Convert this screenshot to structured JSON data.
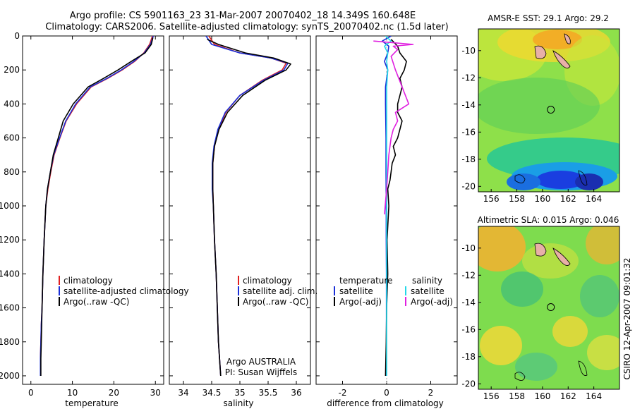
{
  "header": {
    "line1": "Argo profile: CS 5901163_23 31-Mar-2007 20070402_18 14.349S 160.648E",
    "line2": "Climatology: CARS2006. Satellite-adjusted climatology: synTS_20070402.nc (1.5d later)"
  },
  "side_label": "CSIRO 12-Apr-2007 09:01:32",
  "colors": {
    "climatology": "#e02020",
    "satellite": "#1a2fd8",
    "argo": "#000000",
    "salinity_satellite": "#22d8e8",
    "salinity_argo": "#e020e0"
  },
  "chart_data": [
    {
      "id": "temperature",
      "type": "line",
      "xlabel": "temperature",
      "xlim": [
        -2,
        32
      ],
      "ylim": [
        2050,
        0
      ],
      "xticks": [
        0,
        10,
        20,
        30
      ],
      "xtick_labels": [
        "0",
        "10",
        "20",
        "30"
      ],
      "yticks": [
        0,
        200,
        400,
        600,
        800,
        1000,
        1200,
        1400,
        1600,
        1800,
        2000
      ],
      "ytick_labels": [
        "0",
        "200",
        "400",
        "600",
        "800",
        "1000",
        "1200",
        "1400",
        "1600",
        "1800",
        "2000"
      ],
      "legend": [
        {
          "key": "clim",
          "label": "climatology"
        },
        {
          "key": "sat",
          "label": "satellite-adjusted climatology"
        },
        {
          "key": "argo",
          "label": "Argo(..raw -QC)"
        }
      ],
      "series": [
        {
          "name": "climatology",
          "color_key": "climatology",
          "x": [
            29.3,
            28.6,
            27.2,
            25.0,
            22.0,
            18.5,
            14.5,
            11.0,
            8.5,
            7.0,
            5.6,
            4.8,
            4.1,
            3.6,
            3.2,
            2.9,
            2.7,
            2.5,
            2.4,
            2.3,
            2.3
          ],
          "y": [
            0,
            50,
            100,
            150,
            200,
            250,
            300,
            400,
            500,
            600,
            700,
            800,
            900,
            1000,
            1200,
            1400,
            1600,
            1700,
            1800,
            1900,
            2000
          ]
        },
        {
          "name": "satellite-adjusted climatology",
          "color_key": "satellite",
          "x": [
            29.5,
            28.8,
            27.3,
            24.8,
            21.8,
            18.3,
            14.3,
            10.8,
            8.4,
            6.9,
            5.5,
            4.7,
            4.0,
            3.6,
            3.2,
            2.9,
            2.7,
            2.5,
            2.4,
            2.3,
            2.3
          ],
          "y": [
            0,
            50,
            100,
            150,
            200,
            250,
            300,
            400,
            500,
            600,
            700,
            800,
            900,
            1000,
            1200,
            1400,
            1600,
            1700,
            1800,
            1900,
            2000
          ]
        },
        {
          "name": "Argo(..raw -QC)",
          "color_key": "argo",
          "x": [
            29.4,
            29.0,
            27.5,
            24.2,
            21.0,
            17.5,
            13.8,
            10.2,
            7.8,
            6.6,
            5.4,
            4.7,
            4.0,
            3.6,
            3.2,
            2.9,
            2.7,
            2.6,
            2.5,
            2.4,
            2.4
          ],
          "y": [
            10,
            50,
            100,
            150,
            200,
            250,
            300,
            400,
            500,
            600,
            700,
            800,
            900,
            1000,
            1200,
            1400,
            1600,
            1700,
            1800,
            1900,
            2000
          ]
        }
      ]
    },
    {
      "id": "salinity",
      "type": "line",
      "xlabel": "salinity",
      "xlim": [
        33.75,
        36.25
      ],
      "ylim": [
        2050,
        0
      ],
      "xticks": [
        34,
        34.5,
        35,
        35.5,
        36
      ],
      "xtick_labels": [
        "34",
        "34.5",
        "35",
        "35.5",
        "36"
      ],
      "legend": [
        {
          "key": "clim",
          "label": "climatology"
        },
        {
          "key": "sat",
          "label": "satellite adj. clim."
        },
        {
          "key": "argo",
          "label": "Argo(..raw -QC)"
        }
      ],
      "annotations": [
        "Argo AUSTRALIA",
        "PI: Susan Wijffels"
      ],
      "series": [
        {
          "name": "climatology",
          "color_key": "climatology",
          "x": [
            34.45,
            34.55,
            35.0,
            35.55,
            35.82,
            35.75,
            35.4,
            35.0,
            34.75,
            34.62,
            34.55,
            34.52,
            34.52,
            34.53,
            34.55,
            34.58,
            34.6,
            34.62,
            34.64,
            34.66
          ],
          "y": [
            0,
            50,
            100,
            130,
            160,
            200,
            260,
            350,
            450,
            550,
            650,
            750,
            900,
            1000,
            1200,
            1400,
            1600,
            1800,
            1900,
            2000
          ]
        },
        {
          "name": "satellite adj. clim.",
          "color_key": "satellite",
          "x": [
            34.4,
            34.5,
            35.0,
            35.55,
            35.85,
            35.78,
            35.42,
            35.0,
            34.74,
            34.61,
            34.54,
            34.51,
            34.51,
            34.53,
            34.55,
            34.58,
            34.6,
            34.62,
            34.64,
            34.66
          ],
          "y": [
            0,
            50,
            100,
            130,
            160,
            200,
            260,
            350,
            450,
            550,
            650,
            750,
            900,
            1000,
            1200,
            1400,
            1600,
            1800,
            1900,
            2000
          ]
        },
        {
          "name": "Argo(..raw -QC)",
          "color_key": "argo",
          "x": [
            34.42,
            34.62,
            35.1,
            35.6,
            35.9,
            35.82,
            35.45,
            35.05,
            34.78,
            34.63,
            34.55,
            34.52,
            34.52,
            34.53,
            34.55,
            34.58,
            34.6,
            34.62,
            34.64,
            34.66
          ],
          "y": [
            20,
            50,
            100,
            130,
            165,
            200,
            260,
            350,
            450,
            550,
            650,
            750,
            900,
            1000,
            1200,
            1400,
            1600,
            1800,
            1900,
            2000
          ]
        }
      ]
    },
    {
      "id": "difference",
      "type": "line",
      "xlabel": "difference from climatology",
      "xlim": [
        -3.2,
        3.2
      ],
      "ylim": [
        2050,
        0
      ],
      "xticks": [
        -2,
        0,
        2
      ],
      "xtick_labels": [
        "-2",
        "0",
        "2"
      ],
      "legend_titles": [
        "temperature",
        "salinity"
      ],
      "legend": [
        {
          "key": "t_sat",
          "label": "satellite"
        },
        {
          "key": "t_argo",
          "label": "Argo(-adj)"
        },
        {
          "key": "s_sat",
          "label": "satellite"
        },
        {
          "key": "s_argo",
          "label": "Argo(-adj)"
        }
      ],
      "series": [
        {
          "name": "temperature satellite",
          "color_key": "satellite",
          "x": [
            0.2,
            -0.2,
            0.1,
            0.05,
            -0.1,
            0.05,
            -0.05,
            -0.05,
            -0.03,
            -0.03,
            -0.02,
            -0.02,
            -0.01,
            -0.01,
            -0.01,
            -0.01
          ],
          "y": [
            0,
            30,
            60,
            100,
            150,
            200,
            300,
            400,
            600,
            800,
            1000,
            1200,
            1400,
            1600,
            1800,
            2000
          ]
        },
        {
          "name": "temperature Argo(-adj)",
          "color_key": "argo",
          "x": [
            0.2,
            0.5,
            0.6,
            0.9,
            0.8,
            0.6,
            0.7,
            0.6,
            0.5,
            0.5,
            0.7,
            0.6,
            0.5,
            0.3,
            0.4,
            0.25,
            0.2,
            0.15,
            0.05,
            0.1,
            0.02,
            0.05,
            0.0,
            -0.02,
            -0.05
          ],
          "y": [
            20,
            60,
            100,
            150,
            200,
            250,
            300,
            350,
            400,
            450,
            500,
            550,
            600,
            650,
            700,
            750,
            800,
            850,
            900,
            1000,
            1200,
            1400,
            1600,
            1800,
            2000
          ]
        },
        {
          "name": "salinity satellite",
          "color_key": "salinity_satellite",
          "x": [
            -0.05,
            0.2,
            -0.1,
            0.05,
            0.0,
            0.05,
            0.0,
            0.0,
            0.0,
            0.0,
            0.0,
            0.0,
            0.0,
            0.0,
            0.0
          ],
          "y": [
            0,
            30,
            60,
            100,
            150,
            200,
            300,
            400,
            600,
            800,
            1000,
            1200,
            1400,
            1600,
            2000
          ]
        },
        {
          "name": "salinity Argo(-adj)",
          "color_key": "salinity_argo",
          "x": [
            -0.6,
            0.3,
            1.2,
            0.3,
            0.5,
            0.2,
            0.4,
            0.7,
            1.0,
            0.4,
            0.5,
            0.3,
            0.2,
            0.1,
            0.05,
            0.0,
            -0.1
          ],
          "y": [
            30,
            40,
            50,
            60,
            80,
            120,
            200,
            300,
            400,
            450,
            500,
            550,
            600,
            700,
            800,
            900,
            1050
          ]
        }
      ]
    },
    {
      "id": "sst_map",
      "type": "heatmap",
      "title": "AMSR-E SST: 29.1 Argo: 29.2",
      "xlim": [
        155,
        166
      ],
      "ylim": [
        -20.4,
        -8.4
      ],
      "xticks": [
        156,
        158,
        160,
        162,
        164
      ],
      "xtick_labels": [
        "156",
        "158",
        "160",
        "162",
        "164"
      ],
      "yticks": [
        -10,
        -12,
        -14,
        -16,
        -18,
        -20
      ],
      "ytick_labels": [
        "-10",
        "-12",
        "-14",
        "-16",
        "-18",
        "-20"
      ],
      "marker": {
        "lon": 160.648,
        "lat": -14.349
      }
    },
    {
      "id": "sla_map",
      "type": "heatmap",
      "title": "Altimetric SLA: 0.015 Argo: 0.046",
      "xlim": [
        155,
        166
      ],
      "ylim": [
        -20.4,
        -8.4
      ],
      "xticks": [
        156,
        158,
        160,
        162,
        164
      ],
      "xtick_labels": [
        "156",
        "158",
        "160",
        "162",
        "164"
      ],
      "yticks": [
        -10,
        -12,
        -14,
        -16,
        -18,
        -20
      ],
      "ytick_labels": [
        "-10",
        "-12",
        "-14",
        "-16",
        "-18",
        "-20"
      ],
      "marker": {
        "lon": 160.648,
        "lat": -14.349
      }
    }
  ]
}
